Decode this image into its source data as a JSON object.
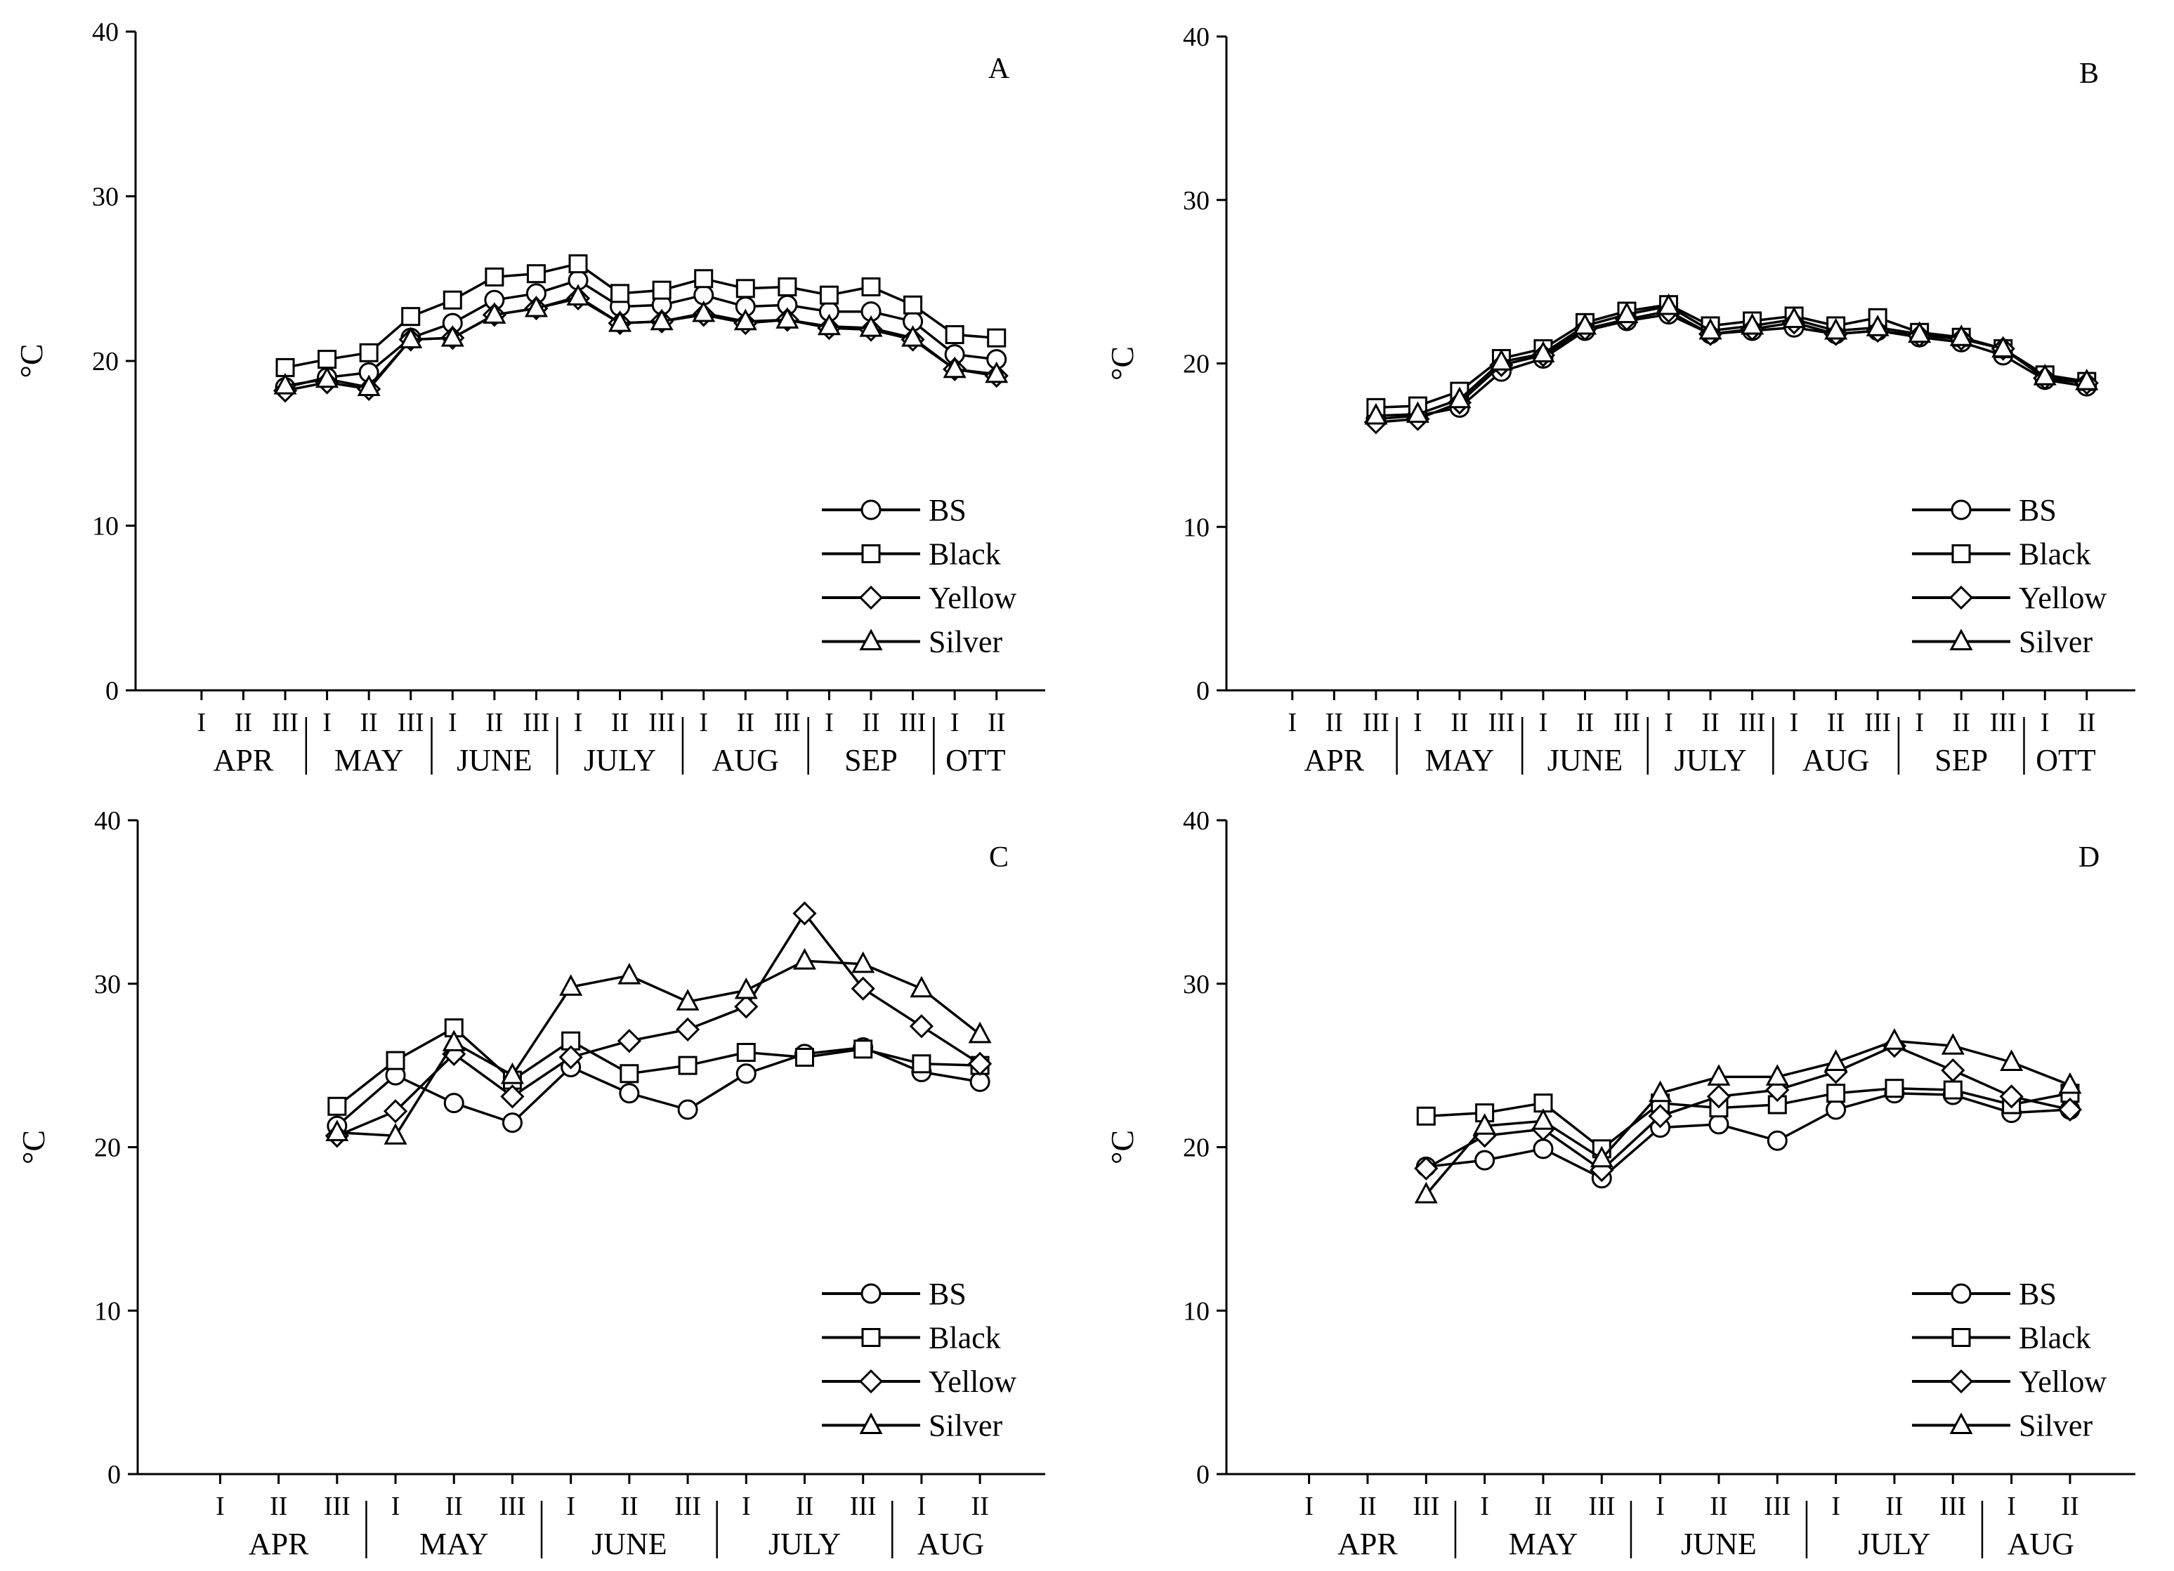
{
  "legend_labels": [
    "BS",
    "Black",
    "Yellow",
    "Silver"
  ],
  "chart_data": [
    {
      "panel": "A",
      "type": "line",
      "ylabel": "°C",
      "ylim": [
        0,
        40
      ],
      "yticks": [
        0,
        10,
        20,
        30,
        40
      ],
      "decades": [
        "I",
        "II",
        "III",
        "I",
        "II",
        "III",
        "I",
        "II",
        "III",
        "I",
        "II",
        "III",
        "I",
        "II",
        "III",
        "I",
        "II",
        "III",
        "I",
        "II"
      ],
      "months": [
        {
          "label": "APR",
          "from": 0,
          "to": 2
        },
        {
          "label": "MAY",
          "from": 3,
          "to": 5
        },
        {
          "label": "JUNE",
          "from": 6,
          "to": 8
        },
        {
          "label": "JULY",
          "from": 9,
          "to": 11
        },
        {
          "label": "AUG",
          "from": 12,
          "to": 14
        },
        {
          "label": "SEP",
          "from": 15,
          "to": 17
        },
        {
          "label": "OTT",
          "from": 18,
          "to": 19
        }
      ],
      "start_index": 2,
      "legend_position": "bottom-right",
      "series": [
        {
          "name": "BS",
          "marker": "circle",
          "values": [
            18.4,
            19.0,
            19.3,
            21.4,
            22.3,
            23.7,
            24.1,
            24.9,
            23.3,
            23.4,
            24.0,
            23.3,
            23.4,
            23.0,
            23.0,
            22.4,
            20.4,
            20.1
          ]
        },
        {
          "name": "Black",
          "marker": "square",
          "values": [
            19.6,
            20.1,
            20.5,
            22.7,
            23.7,
            25.1,
            25.3,
            25.9,
            24.1,
            24.3,
            25.0,
            24.4,
            24.5,
            24.0,
            24.5,
            23.4,
            21.6,
            21.4
          ]
        },
        {
          "name": "Yellow",
          "marker": "diamond",
          "values": [
            18.2,
            18.7,
            18.3,
            21.3,
            21.4,
            22.8,
            23.2,
            23.8,
            22.3,
            22.4,
            22.8,
            22.3,
            22.5,
            22.0,
            21.9,
            21.3,
            19.5,
            19.1
          ]
        },
        {
          "name": "Silver",
          "marker": "triangle",
          "values": [
            18.5,
            18.9,
            18.4,
            21.3,
            21.4,
            22.8,
            23.2,
            23.9,
            22.3,
            22.4,
            22.9,
            22.4,
            22.5,
            22.1,
            22.0,
            21.4,
            19.5,
            19.2
          ]
        }
      ]
    },
    {
      "panel": "B",
      "type": "line",
      "ylabel": "°C",
      "ylim": [
        0,
        40
      ],
      "yticks": [
        0,
        10,
        20,
        30,
        40
      ],
      "decades": [
        "I",
        "II",
        "III",
        "I",
        "II",
        "III",
        "I",
        "II",
        "III",
        "I",
        "II",
        "III",
        "I",
        "II",
        "III",
        "I",
        "II",
        "III",
        "I",
        "II"
      ],
      "months": [
        {
          "label": "APR",
          "from": 0,
          "to": 2
        },
        {
          "label": "MAY",
          "from": 3,
          "to": 5
        },
        {
          "label": "JUNE",
          "from": 6,
          "to": 8
        },
        {
          "label": "JULY",
          "from": 9,
          "to": 11
        },
        {
          "label": "AUG",
          "from": 12,
          "to": 14
        },
        {
          "label": "SEP",
          "from": 15,
          "to": 17
        },
        {
          "label": "OTT",
          "from": 18,
          "to": 19
        }
      ],
      "start_index": 2,
      "legend_position": "bottom-right",
      "series": [
        {
          "name": "BS",
          "marker": "circle",
          "values": [
            16.6,
            16.8,
            17.3,
            19.5,
            20.3,
            22.0,
            22.6,
            23.0,
            21.8,
            22.0,
            22.2,
            21.8,
            22.0,
            21.6,
            21.3,
            20.5,
            19.0,
            18.6
          ]
        },
        {
          "name": "Black",
          "marker": "square",
          "values": [
            17.3,
            17.4,
            18.3,
            20.3,
            20.9,
            22.5,
            23.2,
            23.6,
            22.3,
            22.6,
            22.9,
            22.3,
            22.8,
            21.9,
            21.6,
            20.9,
            19.3,
            18.9
          ]
        },
        {
          "name": "Yellow",
          "marker": "diamond",
          "values": [
            16.4,
            16.6,
            17.6,
            19.9,
            20.5,
            22.1,
            22.7,
            23.2,
            21.8,
            22.1,
            22.5,
            21.8,
            22.0,
            21.7,
            21.5,
            20.9,
            19.1,
            18.8
          ]
        },
        {
          "name": "Silver",
          "marker": "triangle",
          "values": [
            16.8,
            16.9,
            17.8,
            20.1,
            20.6,
            22.3,
            23.0,
            23.5,
            22.0,
            22.3,
            22.7,
            22.0,
            22.2,
            21.8,
            21.6,
            20.9,
            19.2,
            18.9
          ]
        }
      ]
    },
    {
      "panel": "C",
      "type": "line",
      "ylabel": "°C",
      "ylim": [
        0,
        40
      ],
      "yticks": [
        0,
        10,
        20,
        30,
        40
      ],
      "decades": [
        "I",
        "II",
        "III",
        "I",
        "II",
        "III",
        "I",
        "II",
        "III",
        "I",
        "II",
        "III",
        "I",
        "II"
      ],
      "months": [
        {
          "label": "APR",
          "from": 0,
          "to": 2
        },
        {
          "label": "MAY",
          "from": 3,
          "to": 5
        },
        {
          "label": "JUNE",
          "from": 6,
          "to": 8
        },
        {
          "label": "JULY",
          "from": 9,
          "to": 11
        },
        {
          "label": "AUG",
          "from": 12,
          "to": 13
        }
      ],
      "start_index": 2,
      "legend_position": "bottom-right",
      "series": [
        {
          "name": "BS",
          "marker": "circle",
          "values": [
            21.3,
            24.4,
            22.7,
            21.5,
            24.9,
            23.3,
            22.3,
            24.5,
            25.7,
            26.1,
            24.6,
            24.0
          ]
        },
        {
          "name": "Black",
          "marker": "square",
          "values": [
            22.5,
            25.3,
            27.3,
            24.1,
            26.5,
            24.5,
            25.0,
            25.8,
            25.5,
            26.0,
            25.1,
            25.0
          ]
        },
        {
          "name": "Yellow",
          "marker": "diamond",
          "values": [
            20.7,
            22.2,
            25.7,
            23.1,
            25.5,
            26.5,
            27.2,
            28.6,
            34.3,
            29.7,
            27.4,
            25.1
          ]
        },
        {
          "name": "Silver",
          "marker": "triangle",
          "values": [
            20.9,
            20.7,
            26.4,
            24.4,
            29.8,
            30.5,
            28.9,
            29.6,
            31.4,
            31.2,
            29.7,
            26.9
          ]
        }
      ]
    },
    {
      "panel": "D",
      "type": "line",
      "ylabel": "°C",
      "ylim": [
        0,
        40
      ],
      "yticks": [
        0,
        10,
        20,
        30,
        40
      ],
      "decades": [
        "I",
        "II",
        "III",
        "I",
        "II",
        "III",
        "I",
        "II",
        "III",
        "I",
        "II",
        "III",
        "I",
        "II"
      ],
      "months": [
        {
          "label": "APR",
          "from": 0,
          "to": 2
        },
        {
          "label": "MAY",
          "from": 3,
          "to": 5
        },
        {
          "label": "JUNE",
          "from": 6,
          "to": 8
        },
        {
          "label": "JULY",
          "from": 9,
          "to": 11
        },
        {
          "label": "AUG",
          "from": 12,
          "to": 13
        }
      ],
      "start_index": 2,
      "legend_position": "bottom-right",
      "series": [
        {
          "name": "BS",
          "marker": "circle",
          "values": [
            18.8,
            19.2,
            19.9,
            18.1,
            21.2,
            21.4,
            20.4,
            22.3,
            23.3,
            23.2,
            22.1,
            22.3
          ]
        },
        {
          "name": "Black",
          "marker": "square",
          "values": [
            21.9,
            22.1,
            22.7,
            19.9,
            22.7,
            22.4,
            22.6,
            23.3,
            23.6,
            23.5,
            22.6,
            23.3
          ]
        },
        {
          "name": "Yellow",
          "marker": "diamond",
          "values": [
            18.7,
            20.7,
            21.1,
            18.6,
            21.9,
            23.1,
            23.5,
            24.6,
            26.2,
            24.7,
            23.1,
            22.3
          ]
        },
        {
          "name": "Silver",
          "marker": "triangle",
          "values": [
            17.1,
            21.3,
            21.6,
            19.3,
            23.3,
            24.3,
            24.3,
            25.2,
            26.5,
            26.2,
            25.2,
            23.8
          ]
        }
      ]
    }
  ]
}
